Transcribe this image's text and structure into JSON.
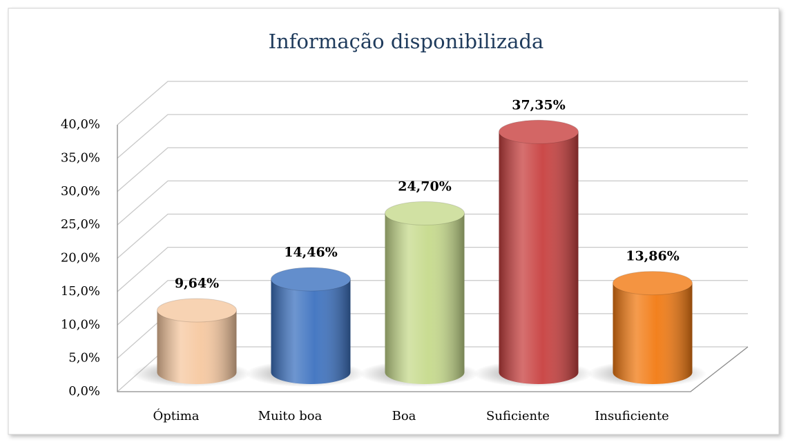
{
  "chart_data": {
    "type": "bar",
    "title": "Informação disponibilizada",
    "categories": [
      "Óptima",
      "Muito boa",
      "Boa",
      "Suficiente",
      "Insuficiente"
    ],
    "values": [
      9.64,
      14.46,
      24.7,
      37.35,
      13.86
    ],
    "value_labels": [
      "9,64%",
      "14,46%",
      "24,70%",
      "37,35%",
      "13,86%"
    ],
    "colors": [
      "#f6c8a0",
      "#3d72c0",
      "#c6da8c",
      "#c8403f",
      "#f27a12"
    ],
    "ylim": [
      0,
      40
    ],
    "yticks": [
      {
        "value": 0,
        "label": "0,0%"
      },
      {
        "value": 5,
        "label": "5,0%"
      },
      {
        "value": 10,
        "label": "10,0%"
      },
      {
        "value": 15,
        "label": "15,0%"
      },
      {
        "value": 20,
        "label": "20,0%"
      },
      {
        "value": 25,
        "label": "25,0%"
      },
      {
        "value": 30,
        "label": "30,0%"
      },
      {
        "value": 35,
        "label": "35,0%"
      },
      {
        "value": 40,
        "label": "40,0%"
      }
    ],
    "grid": true
  }
}
